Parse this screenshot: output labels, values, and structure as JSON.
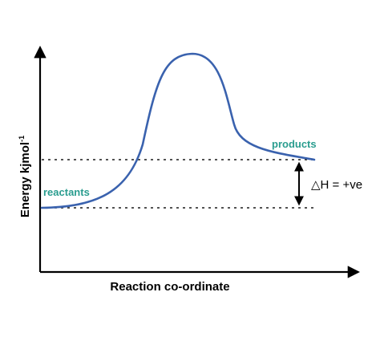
{
  "diagram": {
    "axes": {
      "x_label": "Reaction co-ordinate",
      "y_label": "Energy kjmol",
      "y_label_superscript": "-1"
    },
    "curve": {
      "color": "#3a62ae"
    },
    "labels": {
      "reactants": "reactants",
      "products": "products",
      "label_color": "#2a9d8f"
    },
    "enthalpy_change": {
      "text": "△H = +ve",
      "direction": "up"
    }
  }
}
